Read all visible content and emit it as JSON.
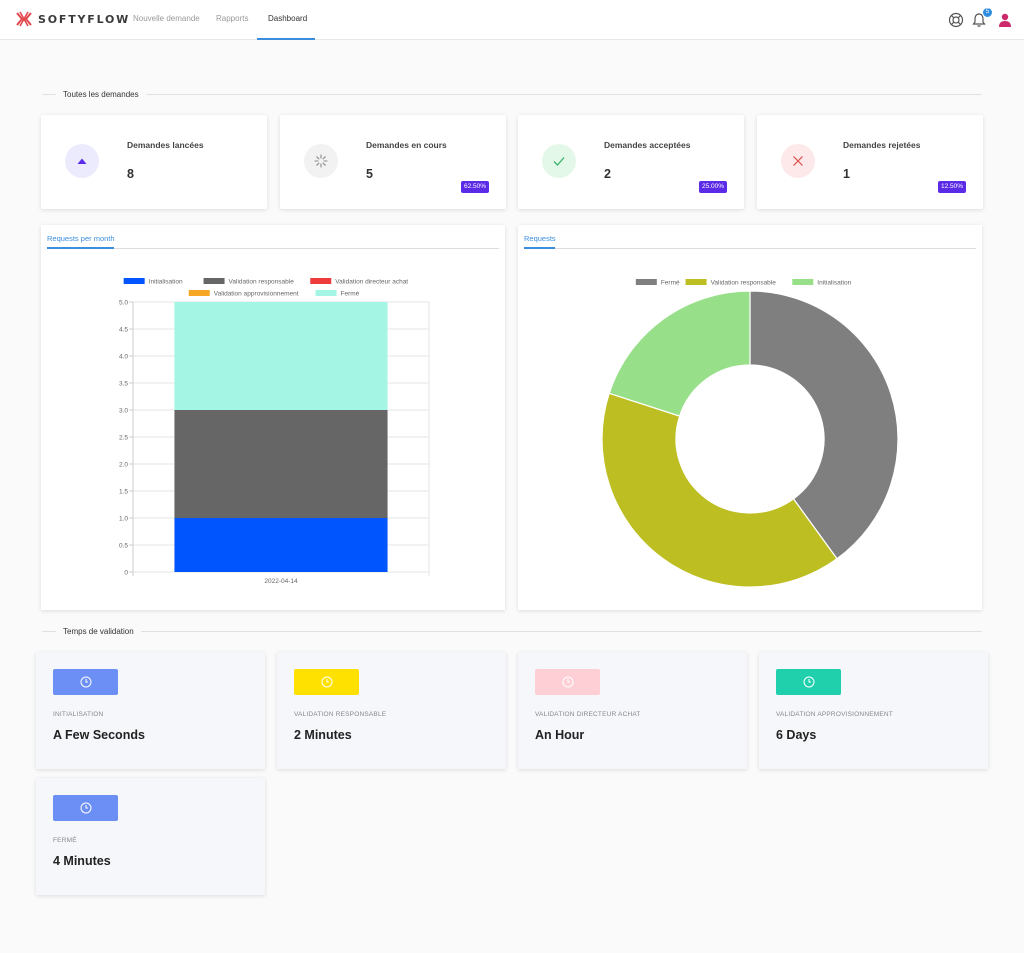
{
  "app": {
    "brand": "SOFTYFLOW",
    "nav": [
      {
        "label": "Nouvelle demande"
      },
      {
        "label": "Rapports"
      },
      {
        "label": "Dashboard"
      }
    ],
    "notification_count": "5"
  },
  "sections": {
    "requests_title": "Toutes les demandes",
    "validation_title": "Temps de validation"
  },
  "stats": [
    {
      "title": "Demandes lancées",
      "value": "8",
      "badge": "",
      "icon": "triangle-up-icon",
      "icon_bg": "#ecebfd",
      "icon_color": "#5b2be8"
    },
    {
      "title": "Demandes en cours",
      "value": "5",
      "badge": "62.50%",
      "icon": "spinner-icon",
      "icon_bg": "#f2f2f2",
      "icon_color": "#888888"
    },
    {
      "title": "Demandes acceptées",
      "value": "2",
      "badge": "25.00%",
      "icon": "check-icon",
      "icon_bg": "#e4f8ea",
      "icon_color": "#3bb36a"
    },
    {
      "title": "Demandes rejetées",
      "value": "1",
      "badge": "12.50%",
      "icon": "close-icon",
      "icon_bg": "#fde9ea",
      "icon_color": "#e04848"
    }
  ],
  "panels": {
    "bar_tab": "Requests per month",
    "pie_tab": "Requests"
  },
  "chart_data": [
    {
      "type": "bar",
      "stacked": true,
      "categories": [
        "2022-04-14"
      ],
      "series": [
        {
          "name": "Initialisation",
          "values": [
            1
          ],
          "color": "#0055ff"
        },
        {
          "name": "Validation responsable",
          "values": [
            2
          ],
          "color": "#666666"
        },
        {
          "name": "Validation directeur achat",
          "values": [
            0
          ],
          "color": "#ee3b3b"
        },
        {
          "name": "Validation approvisionnement",
          "values": [
            0
          ],
          "color": "#f5a623"
        },
        {
          "name": "Fermé",
          "values": [
            2
          ],
          "color": "#a4f5e4"
        }
      ],
      "ylim": [
        0,
        5
      ],
      "yticks": [
        "0",
        "0.5",
        "1.0",
        "1.5",
        "2.0",
        "2.5",
        "3.0",
        "3.5",
        "4.0",
        "4.5",
        "5.0"
      ],
      "legend": "top",
      "grid": true
    },
    {
      "type": "pie",
      "donut": true,
      "series": [
        {
          "name": "Fermé",
          "value": 2,
          "color": "#7f7f7f"
        },
        {
          "name": "Validation responsable",
          "value": 2,
          "color": "#bdbe22"
        },
        {
          "name": "Initialisation",
          "value": 1,
          "color": "#98df89"
        }
      ],
      "legend": "top"
    }
  ],
  "validation": [
    {
      "label": "INITIALISATION",
      "value": "A Few Seconds",
      "color": "#6b8ff5"
    },
    {
      "label": "VALIDATION RESPONSABLE",
      "value": "2 Minutes",
      "color": "#ffe100"
    },
    {
      "label": "VALIDATION DIRECTEUR ACHAT",
      "value": "An Hour",
      "color": "#ffcfd6"
    },
    {
      "label": "VALIDATION APPROVISIONNEMENT",
      "value": "6 Days",
      "color": "#20d0ad"
    },
    {
      "label": "FERMÉ",
      "value": "4 Minutes",
      "color": "#6b8ff5"
    }
  ]
}
